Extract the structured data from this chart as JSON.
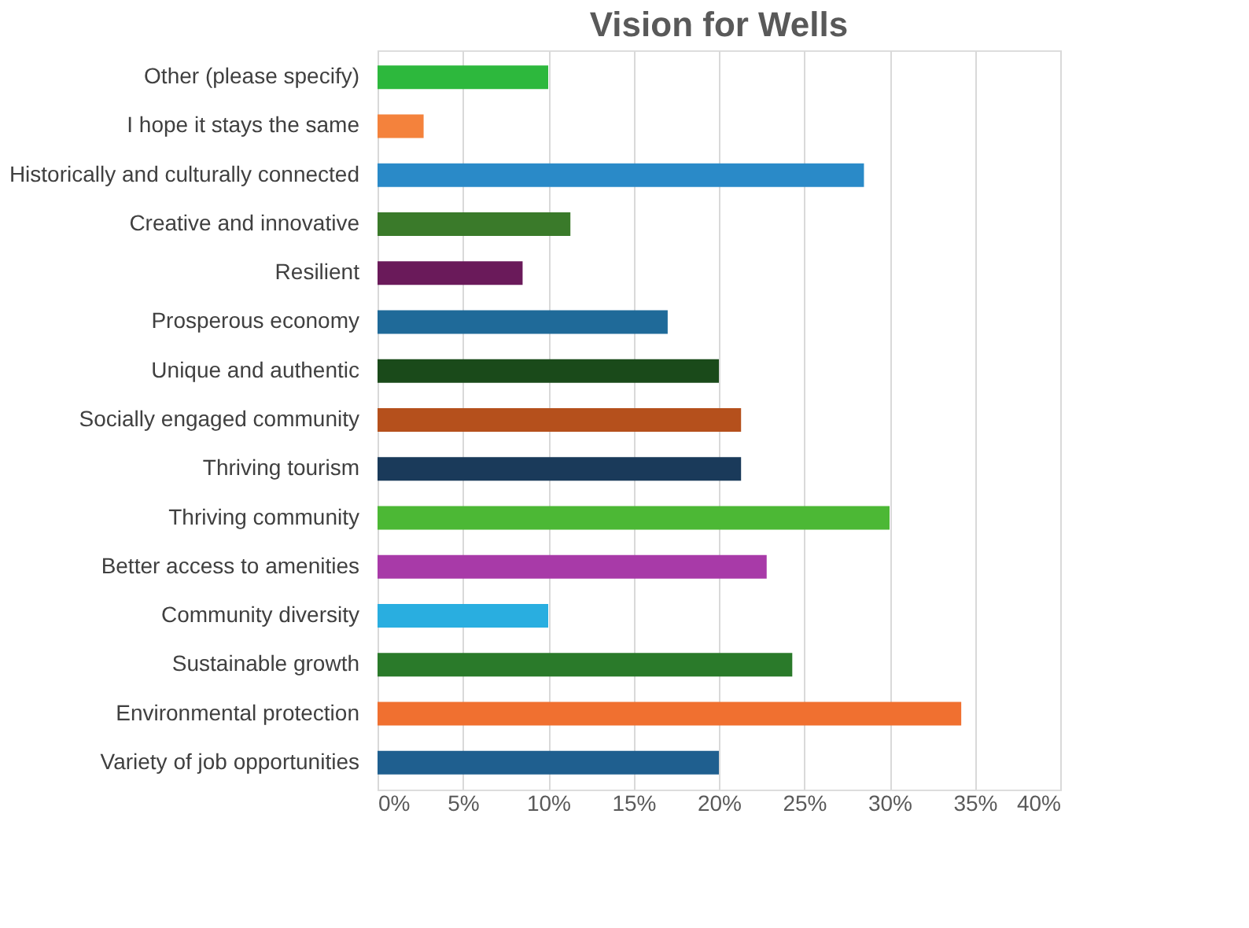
{
  "chart_data": {
    "type": "bar",
    "orientation": "horizontal",
    "title": "Vision for Wells",
    "categories": [
      "Other (please specify)",
      "I hope it stays the same",
      "Historically and culturally connected",
      "Creative and innovative",
      "Resilient",
      "Prosperous economy",
      "Unique and authentic",
      "Socially engaged community",
      "Thriving tourism",
      "Thriving community",
      "Better access to amenities",
      "Community diversity",
      "Sustainable growth",
      "Environmental protection",
      "Variety of job opportunities"
    ],
    "values": [
      10,
      2.7,
      28.5,
      11.3,
      8.5,
      17,
      20,
      21.3,
      21.3,
      30,
      22.8,
      10,
      24.3,
      34.2,
      20
    ],
    "colors": [
      "#2db83d",
      "#f4823c",
      "#2a8ac8",
      "#3a7a2a",
      "#6a1a5a",
      "#1f6a99",
      "#1a4a1a",
      "#b5501c",
      "#1a3a5a",
      "#4cb835",
      "#a83aa8",
      "#29aee0",
      "#2a7a2a",
      "#f07030",
      "#1f5f8f"
    ],
    "xlim": [
      0,
      40
    ],
    "xticks": [
      {
        "value": 0,
        "label": "0%"
      },
      {
        "value": 5,
        "label": "5%"
      },
      {
        "value": 10,
        "label": "10%"
      },
      {
        "value": 15,
        "label": "15%"
      },
      {
        "value": 20,
        "label": "20%"
      },
      {
        "value": 25,
        "label": "25%"
      },
      {
        "value": 30,
        "label": "30%"
      },
      {
        "value": 35,
        "label": "35%"
      },
      {
        "value": 40,
        "label": "40%"
      }
    ],
    "grid": "x",
    "legend": false
  }
}
